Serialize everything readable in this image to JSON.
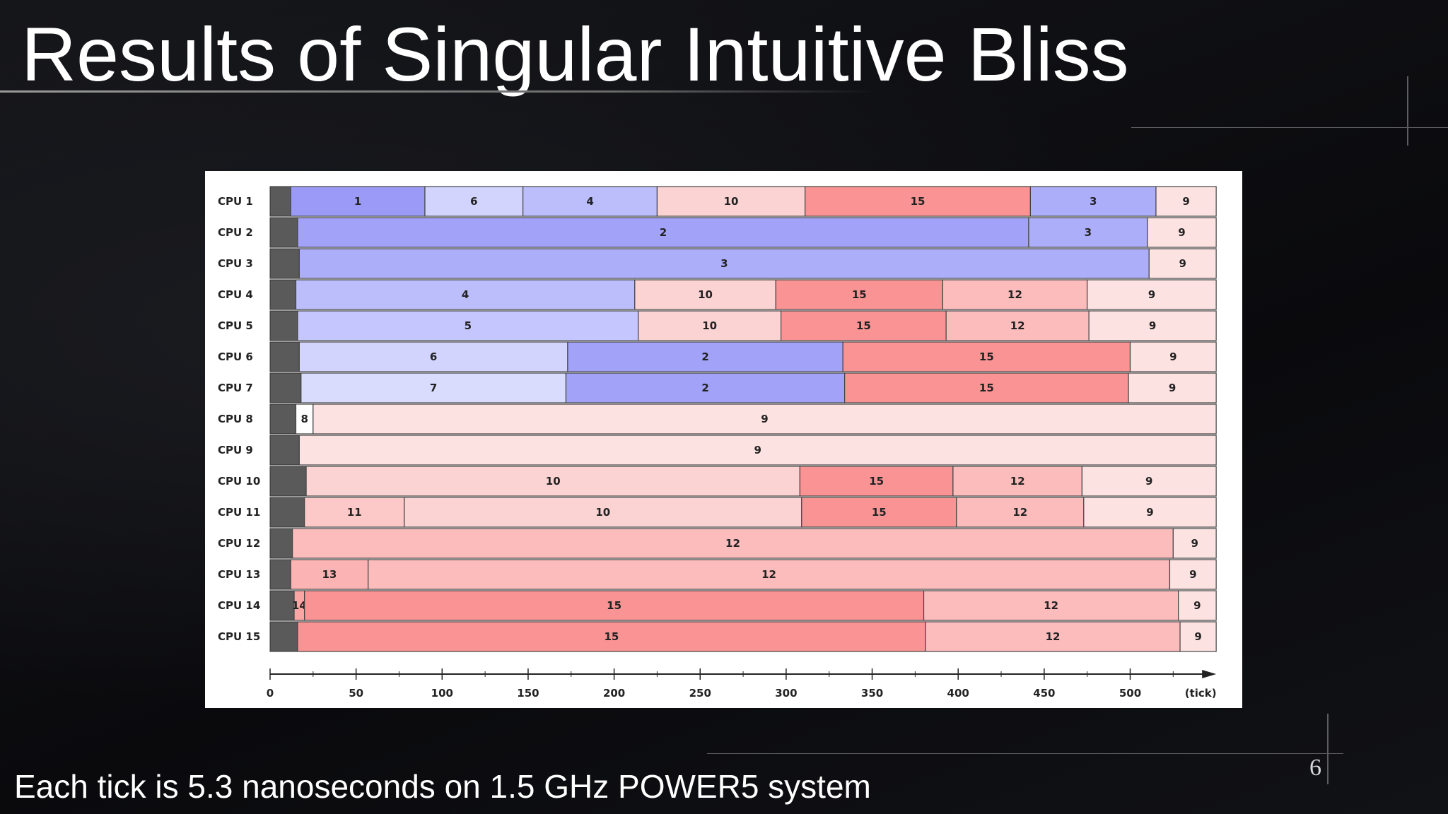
{
  "slide": {
    "title": "Results of Singular Intuitive Bliss",
    "footer": "Each tick is 5.3 nanoseconds on 1.5 GHz POWER5 system",
    "page_number": "6"
  },
  "chart_data": {
    "type": "bar",
    "orientation": "horizontal-stacked",
    "xlabel": "(tick)",
    "xlim": [
      0,
      550
    ],
    "xticks": [
      0,
      50,
      100,
      150,
      200,
      250,
      300,
      350,
      400,
      450,
      500
    ],
    "startup_color": "#5a5a5a",
    "rows": [
      {
        "label": "CPU 1",
        "startup_end": 12,
        "segments": [
          {
            "task": "1",
            "start": 12,
            "end": 90
          },
          {
            "task": "6",
            "start": 90,
            "end": 147
          },
          {
            "task": "4",
            "start": 147,
            "end": 225
          },
          {
            "task": "10",
            "start": 225,
            "end": 311
          },
          {
            "task": "15",
            "start": 311,
            "end": 442
          },
          {
            "task": "3",
            "start": 442,
            "end": 515
          },
          {
            "task": "9",
            "start": 515,
            "end": 550
          }
        ]
      },
      {
        "label": "CPU 2",
        "startup_end": 16,
        "segments": [
          {
            "task": "2",
            "start": 16,
            "end": 441
          },
          {
            "task": "3",
            "start": 441,
            "end": 510
          },
          {
            "task": "9",
            "start": 510,
            "end": 550
          }
        ]
      },
      {
        "label": "CPU 3",
        "startup_end": 17,
        "segments": [
          {
            "task": "3",
            "start": 17,
            "end": 511
          },
          {
            "task": "9",
            "start": 511,
            "end": 550
          }
        ]
      },
      {
        "label": "CPU 4",
        "startup_end": 15,
        "segments": [
          {
            "task": "4",
            "start": 15,
            "end": 212
          },
          {
            "task": "10",
            "start": 212,
            "end": 294
          },
          {
            "task": "15",
            "start": 294,
            "end": 391
          },
          {
            "task": "12",
            "start": 391,
            "end": 475
          },
          {
            "task": "9",
            "start": 475,
            "end": 550
          }
        ]
      },
      {
        "label": "CPU 5",
        "startup_end": 16,
        "segments": [
          {
            "task": "5",
            "start": 16,
            "end": 214
          },
          {
            "task": "10",
            "start": 214,
            "end": 297
          },
          {
            "task": "15",
            "start": 297,
            "end": 393
          },
          {
            "task": "12",
            "start": 393,
            "end": 476
          },
          {
            "task": "9",
            "start": 476,
            "end": 550
          }
        ]
      },
      {
        "label": "CPU 6",
        "startup_end": 17,
        "segments": [
          {
            "task": "6",
            "start": 17,
            "end": 173
          },
          {
            "task": "2",
            "start": 173,
            "end": 333
          },
          {
            "task": "15",
            "start": 333,
            "end": 500
          },
          {
            "task": "9",
            "start": 500,
            "end": 550
          }
        ]
      },
      {
        "label": "CPU 7",
        "startup_end": 18,
        "segments": [
          {
            "task": "7",
            "start": 18,
            "end": 172
          },
          {
            "task": "2",
            "start": 172,
            "end": 334
          },
          {
            "task": "15",
            "start": 334,
            "end": 499
          },
          {
            "task": "9",
            "start": 499,
            "end": 550
          }
        ]
      },
      {
        "label": "CPU 8",
        "startup_end": 15,
        "segments": [
          {
            "task": "8",
            "start": 15,
            "end": 25
          },
          {
            "task": "9",
            "start": 25,
            "end": 550
          }
        ]
      },
      {
        "label": "CPU 9",
        "startup_end": 17,
        "segments": [
          {
            "task": "9",
            "start": 17,
            "end": 550
          }
        ]
      },
      {
        "label": "CPU 10",
        "startup_end": 21,
        "segments": [
          {
            "task": "10",
            "start": 21,
            "end": 308
          },
          {
            "task": "15",
            "start": 308,
            "end": 397
          },
          {
            "task": "12",
            "start": 397,
            "end": 472
          },
          {
            "task": "9",
            "start": 472,
            "end": 550
          }
        ]
      },
      {
        "label": "CPU 11",
        "startup_end": 20,
        "segments": [
          {
            "task": "11",
            "start": 20,
            "end": 78
          },
          {
            "task": "10",
            "start": 78,
            "end": 309
          },
          {
            "task": "15",
            "start": 309,
            "end": 399
          },
          {
            "task": "12",
            "start": 399,
            "end": 473
          },
          {
            "task": "9",
            "start": 473,
            "end": 550
          }
        ]
      },
      {
        "label": "CPU 12",
        "startup_end": 13,
        "segments": [
          {
            "task": "12",
            "start": 13,
            "end": 525
          },
          {
            "task": "9",
            "start": 525,
            "end": 550
          }
        ]
      },
      {
        "label": "CPU 13",
        "startup_end": 12,
        "segments": [
          {
            "task": "13",
            "start": 12,
            "end": 57
          },
          {
            "task": "12",
            "start": 57,
            "end": 523
          },
          {
            "task": "9",
            "start": 523,
            "end": 550
          }
        ]
      },
      {
        "label": "CPU 14",
        "startup_end": 14,
        "segments": [
          {
            "task": "14",
            "start": 14,
            "end": 20
          },
          {
            "task": "15",
            "start": 20,
            "end": 380
          },
          {
            "task": "12",
            "start": 380,
            "end": 528
          },
          {
            "task": "9",
            "start": 528,
            "end": 550
          }
        ]
      },
      {
        "label": "CPU 15",
        "startup_end": 16,
        "segments": [
          {
            "task": "15",
            "start": 16,
            "end": 381
          },
          {
            "task": "12",
            "start": 381,
            "end": 529
          },
          {
            "task": "9",
            "start": 529,
            "end": 550
          }
        ]
      }
    ],
    "task_colors": {
      "1": "#9b9bf7",
      "2": "#a1a2f8",
      "3": "#acaefa",
      "4": "#bcbefc",
      "5": "#c4c6fd",
      "6": "#d2d4fe",
      "7": "#dadcfe",
      "8": "#ffffff",
      "9": "#fde2e2",
      "10": "#fcd3d3",
      "11": "#fcc8c8",
      "12": "#fcbcbc",
      "13": "#fcb3b3",
      "14": "#fba5a5",
      "15": "#fa9494"
    }
  }
}
